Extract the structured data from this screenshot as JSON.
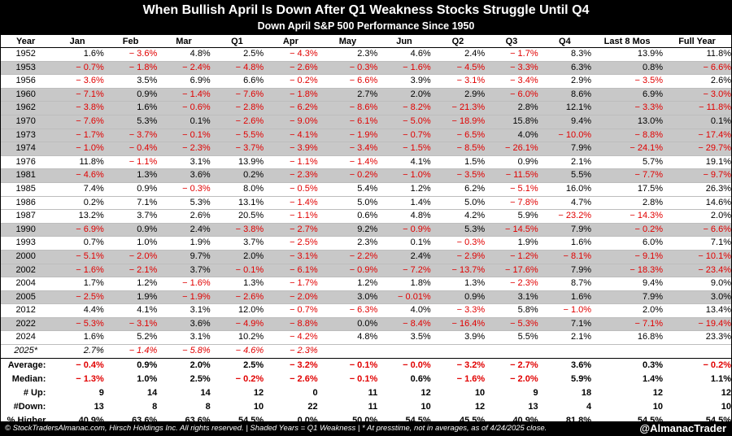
{
  "title": "When Bullish April Is Down After Q1 Weakness Stocks Struggle Until Q4",
  "subtitle": "Down April S&P 500 Performance Since 1950",
  "columns": [
    "Year",
    "Jan",
    "Feb",
    "Mar",
    "Q1",
    "Apr",
    "May",
    "Jun",
    "Q2",
    "Q3",
    "Q4",
    "Last 8 Mos",
    "Full Year"
  ],
  "rows": [
    {
      "year": "1952",
      "shaded": false,
      "italic": false,
      "values": [
        "1.6%",
        "− 3.6%",
        "4.8%",
        "2.5%",
        "− 4.3%",
        "2.3%",
        "4.6%",
        "2.4%",
        "− 1.7%",
        "8.3%",
        "13.9%",
        "11.8%"
      ]
    },
    {
      "year": "1953",
      "shaded": true,
      "italic": false,
      "values": [
        "− 0.7%",
        "− 1.8%",
        "− 2.4%",
        "− 4.8%",
        "− 2.6%",
        "− 0.3%",
        "− 1.6%",
        "− 4.5%",
        "− 3.3%",
        "6.3%",
        "0.8%",
        "− 6.6%"
      ]
    },
    {
      "year": "1956",
      "shaded": false,
      "italic": false,
      "values": [
        "− 3.6%",
        "3.5%",
        "6.9%",
        "6.6%",
        "− 0.2%",
        "− 6.6%",
        "3.9%",
        "− 3.1%",
        "− 3.4%",
        "2.9%",
        "− 3.5%",
        "2.6%"
      ]
    },
    {
      "year": "1960",
      "shaded": true,
      "italic": false,
      "values": [
        "− 7.1%",
        "0.9%",
        "− 1.4%",
        "− 7.6%",
        "− 1.8%",
        "2.7%",
        "2.0%",
        "2.9%",
        "− 6.0%",
        "8.6%",
        "6.9%",
        "− 3.0%"
      ]
    },
    {
      "year": "1962",
      "shaded": true,
      "italic": false,
      "values": [
        "− 3.8%",
        "1.6%",
        "− 0.6%",
        "− 2.8%",
        "− 6.2%",
        "− 8.6%",
        "− 8.2%",
        "− 21.3%",
        "2.8%",
        "12.1%",
        "− 3.3%",
        "− 11.8%"
      ]
    },
    {
      "year": "1970",
      "shaded": true,
      "italic": false,
      "values": [
        "− 7.6%",
        "5.3%",
        "0.1%",
        "− 2.6%",
        "− 9.0%",
        "− 6.1%",
        "− 5.0%",
        "− 18.9%",
        "15.8%",
        "9.4%",
        "13.0%",
        "0.1%"
      ]
    },
    {
      "year": "1973",
      "shaded": true,
      "italic": false,
      "values": [
        "− 1.7%",
        "− 3.7%",
        "− 0.1%",
        "− 5.5%",
        "− 4.1%",
        "− 1.9%",
        "− 0.7%",
        "− 6.5%",
        "4.0%",
        "− 10.0%",
        "− 8.8%",
        "− 17.4%"
      ]
    },
    {
      "year": "1974",
      "shaded": true,
      "italic": false,
      "values": [
        "− 1.0%",
        "− 0.4%",
        "− 2.3%",
        "− 3.7%",
        "− 3.9%",
        "− 3.4%",
        "− 1.5%",
        "− 8.5%",
        "− 26.1%",
        "7.9%",
        "− 24.1%",
        "− 29.7%"
      ]
    },
    {
      "year": "1976",
      "shaded": false,
      "italic": false,
      "values": [
        "11.8%",
        "− 1.1%",
        "3.1%",
        "13.9%",
        "− 1.1%",
        "− 1.4%",
        "4.1%",
        "1.5%",
        "0.9%",
        "2.1%",
        "5.7%",
        "19.1%"
      ]
    },
    {
      "year": "1981",
      "shaded": true,
      "italic": false,
      "values": [
        "− 4.6%",
        "1.3%",
        "3.6%",
        "0.2%",
        "− 2.3%",
        "− 0.2%",
        "− 1.0%",
        "− 3.5%",
        "− 11.5%",
        "5.5%",
        "− 7.7%",
        "− 9.7%"
      ]
    },
    {
      "year": "1985",
      "shaded": false,
      "italic": false,
      "values": [
        "7.4%",
        "0.9%",
        "− 0.3%",
        "8.0%",
        "− 0.5%",
        "5.4%",
        "1.2%",
        "6.2%",
        "− 5.1%",
        "16.0%",
        "17.5%",
        "26.3%"
      ]
    },
    {
      "year": "1986",
      "shaded": false,
      "italic": false,
      "values": [
        "0.2%",
        "7.1%",
        "5.3%",
        "13.1%",
        "− 1.4%",
        "5.0%",
        "1.4%",
        "5.0%",
        "− 7.8%",
        "4.7%",
        "2.8%",
        "14.6%"
      ]
    },
    {
      "year": "1987",
      "shaded": false,
      "italic": false,
      "values": [
        "13.2%",
        "3.7%",
        "2.6%",
        "20.5%",
        "− 1.1%",
        "0.6%",
        "4.8%",
        "4.2%",
        "5.9%",
        "− 23.2%",
        "− 14.3%",
        "2.0%"
      ]
    },
    {
      "year": "1990",
      "shaded": true,
      "italic": false,
      "values": [
        "− 6.9%",
        "0.9%",
        "2.4%",
        "− 3.8%",
        "− 2.7%",
        "9.2%",
        "− 0.9%",
        "5.3%",
        "− 14.5%",
        "7.9%",
        "− 0.2%",
        "− 6.6%"
      ]
    },
    {
      "year": "1993",
      "shaded": false,
      "italic": false,
      "values": [
        "0.7%",
        "1.0%",
        "1.9%",
        "3.7%",
        "− 2.5%",
        "2.3%",
        "0.1%",
        "− 0.3%",
        "1.9%",
        "1.6%",
        "6.0%",
        "7.1%"
      ]
    },
    {
      "year": "2000",
      "shaded": true,
      "italic": false,
      "values": [
        "− 5.1%",
        "− 2.0%",
        "9.7%",
        "2.0%",
        "− 3.1%",
        "− 2.2%",
        "2.4%",
        "− 2.9%",
        "− 1.2%",
        "− 8.1%",
        "− 9.1%",
        "− 10.1%"
      ]
    },
    {
      "year": "2002",
      "shaded": true,
      "italic": false,
      "values": [
        "− 1.6%",
        "− 2.1%",
        "3.7%",
        "− 0.1%",
        "− 6.1%",
        "− 0.9%",
        "− 7.2%",
        "− 13.7%",
        "− 17.6%",
        "7.9%",
        "− 18.3%",
        "− 23.4%"
      ]
    },
    {
      "year": "2004",
      "shaded": false,
      "italic": false,
      "values": [
        "1.7%",
        "1.2%",
        "− 1.6%",
        "1.3%",
        "− 1.7%",
        "1.2%",
        "1.8%",
        "1.3%",
        "− 2.3%",
        "8.7%",
        "9.4%",
        "9.0%"
      ]
    },
    {
      "year": "2005",
      "shaded": true,
      "italic": false,
      "values": [
        "− 2.5%",
        "1.9%",
        "− 1.9%",
        "− 2.6%",
        "− 2.0%",
        "3.0%",
        "− 0.01%",
        "0.9%",
        "3.1%",
        "1.6%",
        "7.9%",
        "3.0%"
      ]
    },
    {
      "year": "2012",
      "shaded": false,
      "italic": false,
      "values": [
        "4.4%",
        "4.1%",
        "3.1%",
        "12.0%",
        "− 0.7%",
        "− 6.3%",
        "4.0%",
        "− 3.3%",
        "5.8%",
        "− 1.0%",
        "2.0%",
        "13.4%"
      ]
    },
    {
      "year": "2022",
      "shaded": true,
      "italic": false,
      "values": [
        "− 5.3%",
        "− 3.1%",
        "3.6%",
        "− 4.9%",
        "− 8.8%",
        "0.0%",
        "− 8.4%",
        "− 16.4%",
        "− 5.3%",
        "7.1%",
        "− 7.1%",
        "− 19.4%"
      ]
    },
    {
      "year": "2024",
      "shaded": false,
      "italic": false,
      "values": [
        "1.6%",
        "5.2%",
        "3.1%",
        "10.2%",
        "− 4.2%",
        "4.8%",
        "3.5%",
        "3.9%",
        "5.5%",
        "2.1%",
        "16.8%",
        "23.3%"
      ]
    },
    {
      "year": "2025*",
      "shaded": false,
      "italic": true,
      "values": [
        "2.7%",
        "− 1.4%",
        "− 5.8%",
        "− 4.6%",
        "− 2.3%",
        "",
        "",
        "",
        "",
        "",
        "",
        ""
      ]
    }
  ],
  "stats": [
    {
      "label": "Average:",
      "values": [
        "− 0.4%",
        "0.9%",
        "2.0%",
        "2.5%",
        "− 3.2%",
        "− 0.1%",
        "− 0.0%",
        "− 3.2%",
        "− 2.7%",
        "3.6%",
        "0.3%",
        "− 0.2%"
      ]
    },
    {
      "label": "Median:",
      "values": [
        "− 1.3%",
        "1.0%",
        "2.5%",
        "− 0.2%",
        "− 2.6%",
        "− 0.1%",
        "0.6%",
        "− 1.6%",
        "− 2.0%",
        "5.9%",
        "1.4%",
        "1.1%"
      ]
    },
    {
      "label": "# Up:",
      "values": [
        "9",
        "14",
        "14",
        "12",
        "0",
        "11",
        "12",
        "10",
        "9",
        "18",
        "12",
        "12"
      ]
    },
    {
      "label": "#Down:",
      "values": [
        "13",
        "8",
        "8",
        "10",
        "22",
        "11",
        "10",
        "12",
        "13",
        "4",
        "10",
        "10"
      ]
    },
    {
      "label": "% Higher",
      "values": [
        "40.9%",
        "63.6%",
        "63.6%",
        "54.5%",
        "0.0%",
        "50.0%",
        "54.5%",
        "45.5%",
        "40.9%",
        "81.8%",
        "54.5%",
        "54.5%"
      ]
    }
  ],
  "footer": "© StockTradersAlmanac.com, Hirsch Holdings Inc. All rights reserved. | Shaded Years = Q1 Weakness | * At presstime, not in averages, as of 4/24/2025 close.",
  "handle": "@AlmanacTrader",
  "colors": {
    "negative": "#e10000",
    "shade": "#c8c8c8",
    "header_bg": "#000000"
  }
}
